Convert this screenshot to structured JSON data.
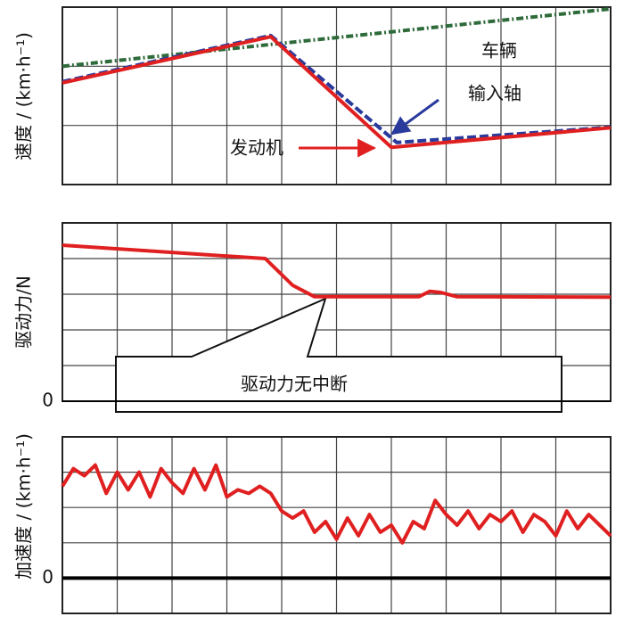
{
  "chart_data": [
    {
      "type": "line",
      "ylabel": "速度 / (km·h⁻¹)",
      "xlim": [
        0,
        10
      ],
      "ylim": [
        0,
        3
      ],
      "annotations": [
        "车辆",
        "输入轴",
        "发动机"
      ],
      "series": [
        {
          "name": "车辆",
          "color": "#2e6b3a",
          "dash": "8 3 2 3",
          "x": [
            0,
            10
          ],
          "values": [
            2.0,
            2.97
          ]
        },
        {
          "name": "输入轴",
          "color": "#2a3a9c",
          "dash": "10 4",
          "x": [
            0,
            3.8,
            6.1,
            10
          ],
          "values": [
            1.74,
            2.52,
            0.71,
            0.97
          ]
        },
        {
          "name": "发动机",
          "color": "#e02020",
          "x": [
            0,
            3.8,
            6.0,
            10
          ],
          "values": [
            1.72,
            2.5,
            0.63,
            0.96
          ]
        }
      ]
    },
    {
      "type": "line",
      "ylabel": "驱动力/N",
      "xlim": [
        0,
        10
      ],
      "ylim": [
        0,
        5
      ],
      "yticks": [
        0
      ],
      "annotations": [
        "驱动力无中断"
      ],
      "series": [
        {
          "name": "驱动力",
          "color": "#e02020",
          "x": [
            0,
            3.7,
            4.2,
            4.6,
            6.5,
            6.7,
            6.9,
            7.2,
            10
          ],
          "values": [
            4.375,
            4.0,
            3.25,
            2.93,
            2.93,
            3.08,
            3.05,
            2.93,
            2.92
          ]
        }
      ]
    },
    {
      "type": "line",
      "ylabel": "加速度 / (km·h⁻¹)",
      "xlim": [
        0,
        10
      ],
      "ylim": [
        -1,
        4
      ],
      "yticks": [
        0
      ],
      "series": [
        {
          "name": "加速度",
          "color": "#e02020",
          "x": [
            0,
            0.2,
            0.4,
            0.6,
            0.8,
            1,
            1.2,
            1.4,
            1.6,
            1.8,
            2,
            2.2,
            2.4,
            2.6,
            2.8,
            3,
            3.2,
            3.4,
            3.6,
            3.8,
            4,
            4.2,
            4.4,
            4.6,
            4.8,
            5,
            5.2,
            5.4,
            5.6,
            5.8,
            6,
            6.2,
            6.4,
            6.6,
            6.8,
            7,
            7.2,
            7.4,
            7.6,
            7.8,
            8,
            8.2,
            8.4,
            8.6,
            8.8,
            9,
            9.2,
            9.4,
            9.6,
            9.8,
            10
          ],
          "values": [
            2.6,
            3.1,
            2.9,
            3.2,
            2.4,
            3.0,
            2.5,
            3.0,
            2.3,
            3.1,
            2.7,
            2.4,
            3.1,
            2.5,
            3.2,
            2.3,
            2.5,
            2.4,
            2.6,
            2.4,
            1.9,
            1.7,
            1.9,
            1.3,
            1.6,
            1.1,
            1.7,
            1.2,
            1.8,
            1.3,
            1.5,
            1.0,
            1.6,
            1.4,
            2.2,
            1.8,
            1.5,
            1.9,
            1.4,
            1.8,
            1.6,
            1.9,
            1.3,
            1.8,
            1.6,
            1.2,
            1.9,
            1.4,
            1.8,
            1.5,
            1.2
          ]
        }
      ]
    }
  ]
}
